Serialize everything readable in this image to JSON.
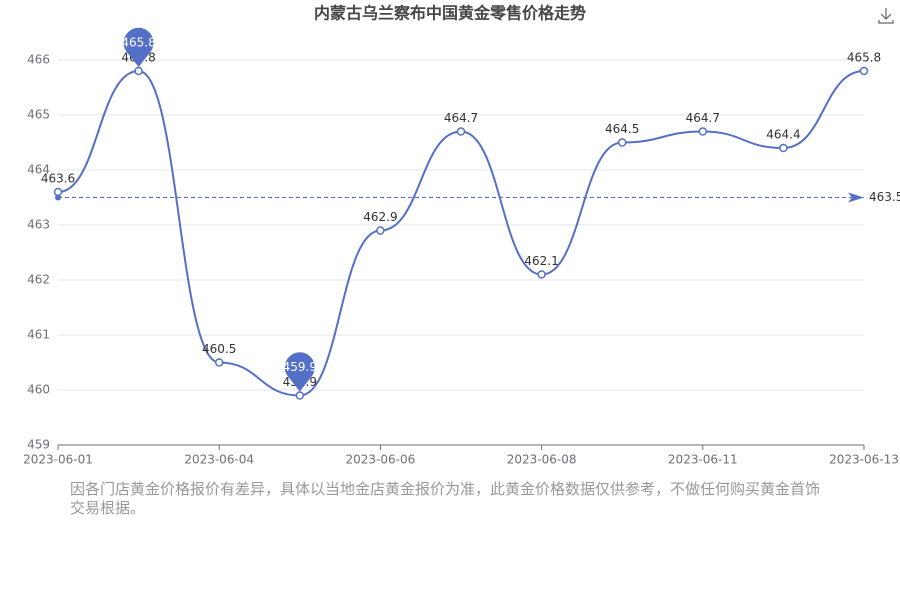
{
  "chart_data": {
    "type": "line",
    "title": "内蒙古乌兰察布中国黄金零售价格走势",
    "categories": [
      "2023-06-01",
      null,
      "2023-06-04",
      null,
      "2023-06-06",
      null,
      "2023-06-08",
      null,
      "2023-06-11",
      null,
      "2023-06-13"
    ],
    "series": [
      {
        "color": "#5470c6",
        "values": [
          463.6,
          465.8,
          460.5,
          459.9,
          462.9,
          464.7,
          462.1,
          464.5,
          464.7,
          464.4,
          465.8
        ]
      }
    ],
    "ylim": [
      459,
      466
    ],
    "yticks": [
      459,
      460,
      461,
      462,
      463,
      464,
      465,
      466
    ],
    "grid": true,
    "mark_points": [
      "max",
      "min"
    ],
    "mark_line": {
      "type": "average",
      "value": 463.5
    },
    "note": "因各门店黄金价格报价有差异，具体以当地金店黄金报价为准，此黄金价格数据仅供参考，不做任何购买黄金首饰交易根据。"
  }
}
